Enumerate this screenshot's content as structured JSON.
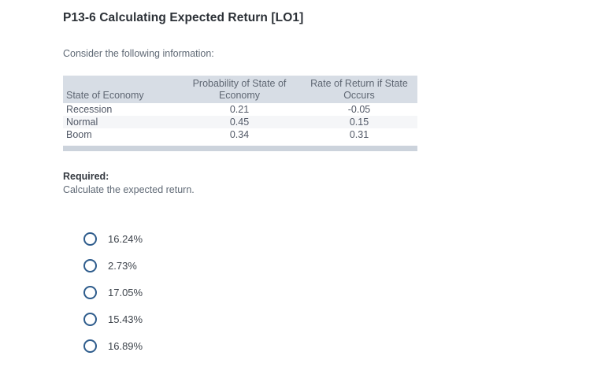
{
  "page": {
    "title": "P13-6 Calculating Expected Return [LO1]",
    "intro": "Consider the following information:"
  },
  "table": {
    "columns": [
      "State of Economy",
      "Probability of State of Economy",
      "Rate of Return if State Occurs"
    ],
    "rows": [
      {
        "state": "Recession",
        "probability": "0.21",
        "rate": "-0.05"
      },
      {
        "state": "Normal",
        "probability": "0.45",
        "rate": "0.15"
      },
      {
        "state": "Boom",
        "probability": "0.34",
        "rate": "0.31"
      }
    ]
  },
  "required": {
    "label": "Required:",
    "instruction": "Calculate the expected return."
  },
  "options": [
    {
      "label": "16.24%",
      "selected": false
    },
    {
      "label": "2.73%",
      "selected": false
    },
    {
      "label": "17.05%",
      "selected": false
    },
    {
      "label": "15.43%",
      "selected": false
    },
    {
      "label": "16.89%",
      "selected": false
    }
  ],
  "colors": {
    "radio_ring": "#2e5c8c",
    "table_header_bg": "#d7dde5",
    "table_footer_bar": "#ccd3dc",
    "row_stripe": "#f5f6f8",
    "title_text": "#2b3036",
    "body_text": "#5f6975"
  }
}
